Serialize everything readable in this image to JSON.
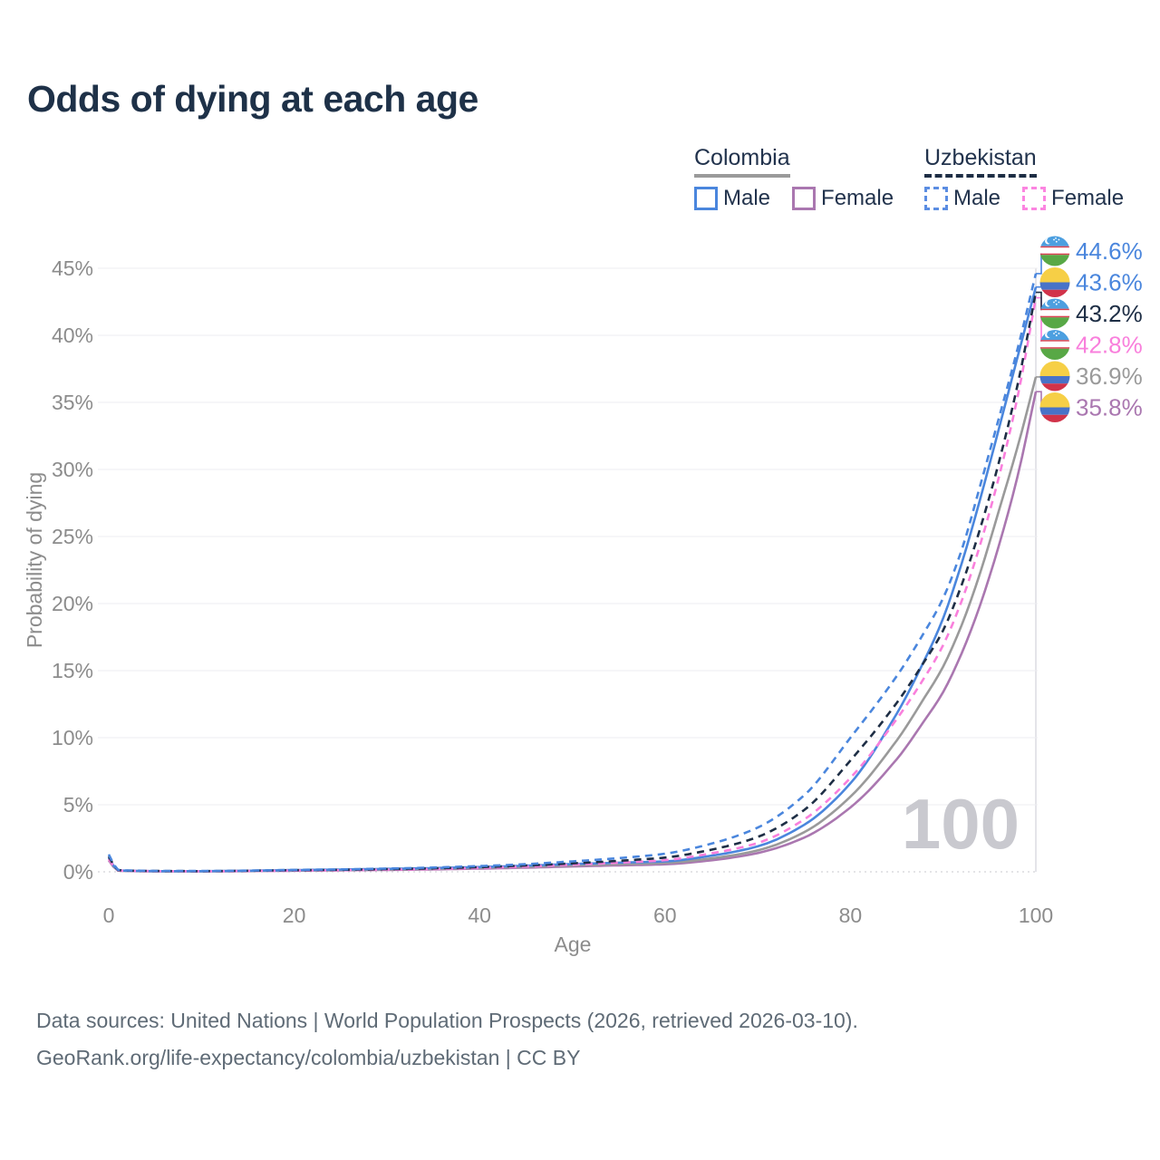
{
  "title": "Odds of dying at each age",
  "legend": {
    "groups": [
      {
        "country": "Colombia",
        "line_style": "solid",
        "underline_color": "#9a9a9a",
        "items": [
          {
            "label": "Male",
            "color": "#4a86dd"
          },
          {
            "label": "Female",
            "color": "#aa77b0"
          }
        ]
      },
      {
        "country": "Uzbekistan",
        "line_style": "dashed",
        "underline_color": "#1e2e45",
        "items": [
          {
            "label": "Male",
            "color": "#5b8de2"
          },
          {
            "label": "Female",
            "color": "#fb85e0"
          }
        ]
      }
    ]
  },
  "footer": {
    "line1": "Data sources: United Nations | World Population Prospects (2026, retrieved 2026-03-10).",
    "line2": "GeoRank.org/life-expectancy/colombia/uzbekistan | CC BY"
  },
  "colors": {
    "title_text": "#1e3148",
    "tick_text": "#8c8c8c",
    "gridline": "#ededf1",
    "zero_line": "#c9c9cf",
    "hover_line": "#dcdce2",
    "watermark": "#c9c9cf",
    "colombia_male": "#4a86dd",
    "colombia_female": "#aa77b0",
    "colombia_both": "#9a9a9a",
    "uzbekistan_male": "#4a86dd",
    "uzbekistan_female": "#f97fdc",
    "uzbekistan_both": "#1e2e45"
  },
  "chart_data": {
    "type": "line",
    "title": "Odds of dying at each age",
    "xlabel": "Age",
    "ylabel": "Probability of dying",
    "x_ticks": [
      0,
      20,
      40,
      60,
      80,
      100
    ],
    "y_ticks_pct": [
      0,
      5,
      10,
      15,
      20,
      25,
      30,
      35,
      40,
      45
    ],
    "y_tick_suffix": "%",
    "xlim": [
      0,
      100
    ],
    "ylim_pct": [
      0,
      47
    ],
    "grid": "horizontal",
    "legend_position": "top-right",
    "hover_age_label": "100",
    "ages": [
      0,
      1,
      2,
      5,
      10,
      15,
      20,
      25,
      30,
      35,
      40,
      45,
      50,
      55,
      60,
      65,
      70,
      75,
      80,
      85,
      88,
      90,
      92,
      94,
      96,
      98,
      100
    ],
    "series": [
      {
        "name": "Colombia Female",
        "country": "Colombia",
        "sex": "Female",
        "line_style": "solid",
        "color": "#aa77b0",
        "flag": "colombia",
        "end_label": "35.8%",
        "label_row": 5,
        "values": [
          0.85,
          0.09,
          0.06,
          0.04,
          0.035,
          0.05,
          0.08,
          0.11,
          0.14,
          0.18,
          0.24,
          0.31,
          0.4,
          0.48,
          0.56,
          0.86,
          1.4,
          2.55,
          4.8,
          8.4,
          11.3,
          13.4,
          16.3,
          19.9,
          24.3,
          29.4,
          35.8
        ]
      },
      {
        "name": "Colombia Both sexes",
        "country": "Colombia",
        "sex": "Both",
        "line_style": "solid",
        "color": "#9a9a9a",
        "flag": "colombia",
        "end_label": "36.9%",
        "label_row": 4,
        "values": [
          0.95,
          0.1,
          0.07,
          0.045,
          0.04,
          0.07,
          0.11,
          0.14,
          0.18,
          0.23,
          0.3,
          0.38,
          0.48,
          0.57,
          0.66,
          1.0,
          1.6,
          2.95,
          5.6,
          9.8,
          13.0,
          15.3,
          18.4,
          22.3,
          26.9,
          31.6,
          36.9
        ]
      },
      {
        "name": "Colombia Male",
        "country": "Colombia",
        "sex": "Male",
        "line_style": "solid",
        "color": "#4a86dd",
        "flag": "colombia",
        "end_label": "43.6%",
        "label_row": 1,
        "values": [
          1.05,
          0.12,
          0.08,
          0.05,
          0.05,
          0.08,
          0.13,
          0.17,
          0.22,
          0.28,
          0.36,
          0.46,
          0.58,
          0.68,
          0.78,
          1.2,
          1.9,
          3.5,
          6.6,
          11.8,
          15.8,
          18.9,
          23.0,
          27.8,
          33.0,
          38.3,
          43.6
        ]
      },
      {
        "name": "Uzbekistan Female",
        "country": "Uzbekistan",
        "sex": "Female",
        "line_style": "dashed",
        "color": "#f97fdc",
        "flag": "uzbekistan",
        "end_label": "42.8%",
        "label_row": 3,
        "values": [
          0.95,
          0.11,
          0.07,
          0.05,
          0.04,
          0.06,
          0.09,
          0.12,
          0.16,
          0.21,
          0.29,
          0.39,
          0.53,
          0.68,
          0.87,
          1.38,
          2.15,
          3.9,
          7.0,
          11.4,
          14.5,
          16.9,
          20.2,
          24.4,
          29.4,
          35.3,
          42.8
        ]
      },
      {
        "name": "Uzbekistan Both sexes",
        "country": "Uzbekistan",
        "sex": "Both",
        "line_style": "dashed",
        "color": "#1e2e45",
        "flag": "uzbekistan",
        "end_label": "43.2%",
        "label_row": 2,
        "values": [
          1.15,
          0.13,
          0.09,
          0.06,
          0.05,
          0.08,
          0.12,
          0.15,
          0.2,
          0.26,
          0.35,
          0.47,
          0.63,
          0.82,
          1.06,
          1.65,
          2.6,
          4.6,
          8.3,
          12.6,
          15.7,
          18.0,
          21.4,
          25.6,
          30.5,
          36.2,
          43.2
        ]
      },
      {
        "name": "Uzbekistan Male",
        "country": "Uzbekistan",
        "sex": "Male",
        "line_style": "dashed",
        "color": "#4a86dd",
        "flag": "uzbekistan",
        "end_label": "44.6%",
        "label_row": 0,
        "values": [
          1.3,
          0.15,
          0.1,
          0.07,
          0.06,
          0.09,
          0.14,
          0.18,
          0.24,
          0.32,
          0.43,
          0.57,
          0.78,
          1.02,
          1.35,
          2.1,
          3.3,
          5.7,
          10.0,
          14.6,
          17.9,
          20.4,
          24.0,
          28.8,
          33.8,
          38.9,
          44.6
        ]
      }
    ],
    "flag_colors": {
      "colombia": {
        "yellow": "#f6cf46",
        "blue": "#4873c8",
        "red": "#d1334a"
      },
      "uzbekistan": {
        "blue": "#4c9fe0",
        "white": "#ffffff",
        "red": "#d8414f",
        "green": "#58a846"
      }
    }
  }
}
